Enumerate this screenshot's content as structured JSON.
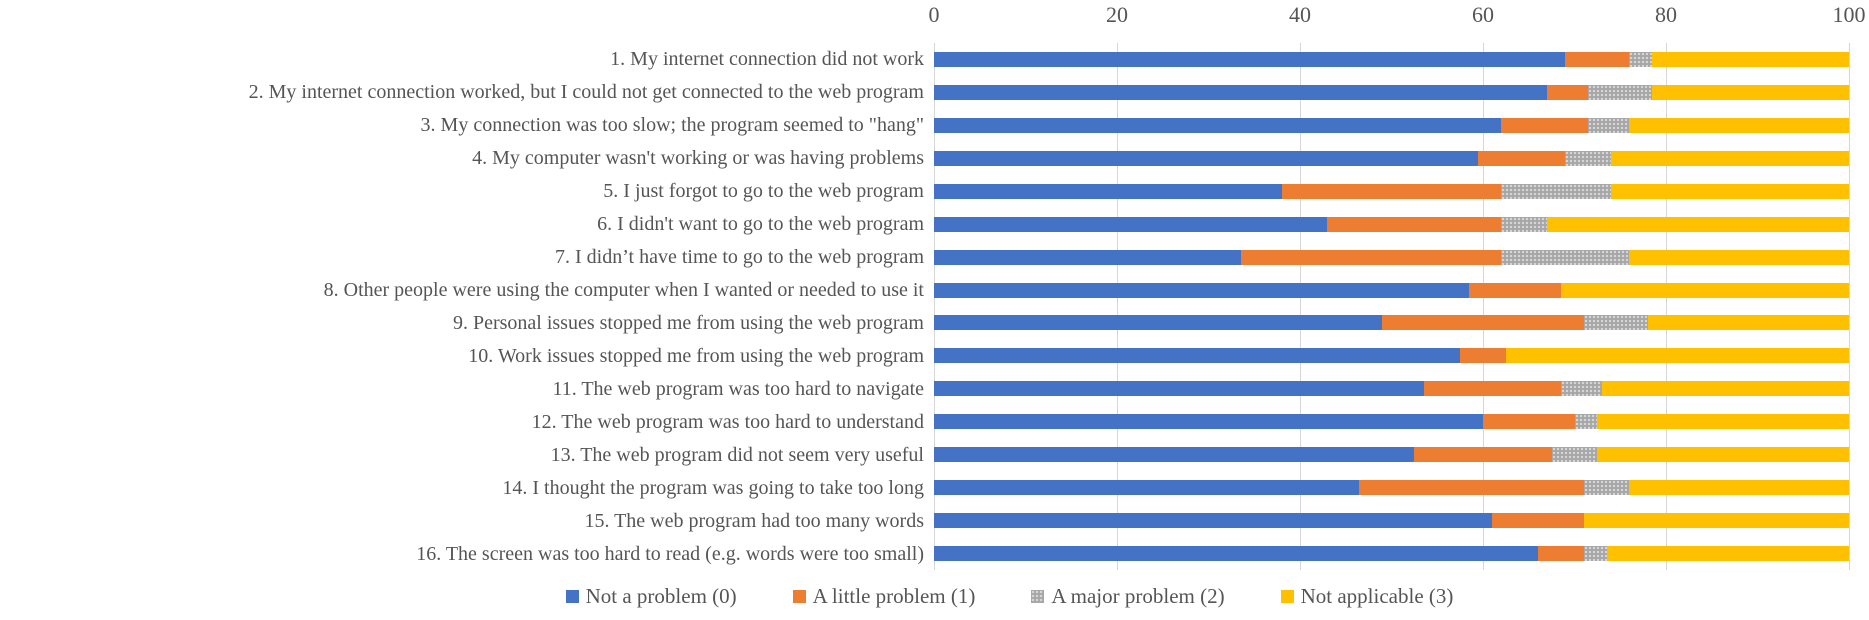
{
  "chart_data": {
    "type": "bar",
    "orientation": "horizontal",
    "stacked": true,
    "stack_total": 100,
    "title": "",
    "grid": true,
    "legend_position": "bottom",
    "x_axis": {
      "min": 0,
      "max": 100,
      "ticks": [
        0,
        20,
        40,
        60,
        80,
        100
      ]
    },
    "categories": [
      "1. My internet connection did not work",
      "2. My internet connection worked, but I could not get connected to the web program",
      "3. My connection was too slow; the program seemed to \"hang\"",
      "4. My computer wasn't working or was having problems",
      "5. I just forgot to go to the web program",
      "6. I didn't want to go to the web program",
      "7. I didn’t have time to go to the web program",
      "8. Other people were using the computer when I wanted or needed to use it",
      "9. Personal issues stopped me from using the web program",
      "10. Work issues stopped me from using the web program",
      "11. The web program was too hard to navigate",
      "12. The web program was too hard to understand",
      "13. The web program did not seem very useful",
      "14. I thought the program was going to take too long",
      "15. The web program had too many words",
      "16. The screen was too hard to read (e.g. words were too small)"
    ],
    "series": [
      {
        "name": "Not a problem (0)",
        "color": "#4472C4",
        "pattern": "solid",
        "values": [
          69,
          67,
          62,
          59.5,
          38,
          43,
          33.5,
          58.5,
          49,
          57.5,
          53.5,
          60,
          52.5,
          46.5,
          61,
          66
        ]
      },
      {
        "name": "A little problem (1)",
        "color": "#ED7D31",
        "pattern": "solid",
        "values": [
          7,
          4.5,
          9.5,
          9.5,
          24,
          19,
          28.5,
          10,
          22,
          5,
          15,
          10,
          15,
          24.5,
          10,
          5
        ]
      },
      {
        "name": "A major problem (2)",
        "color": "#A6A6A6",
        "pattern": "dotted",
        "values": [
          2.5,
          7,
          4.5,
          5,
          12,
          5,
          14,
          0,
          7,
          0,
          4.5,
          2.5,
          5,
          5,
          0,
          2.5
        ]
      },
      {
        "name": "Not applicable (3)",
        "color": "#FFC000",
        "pattern": "solid",
        "values": [
          21.5,
          21.5,
          24,
          26,
          26,
          33,
          24,
          31.5,
          22,
          37.5,
          27,
          27.5,
          27.5,
          24,
          29,
          26.5
        ]
      }
    ]
  },
  "colors": {
    "gridline": "#D6D6D6",
    "axis_text": "#555555"
  }
}
